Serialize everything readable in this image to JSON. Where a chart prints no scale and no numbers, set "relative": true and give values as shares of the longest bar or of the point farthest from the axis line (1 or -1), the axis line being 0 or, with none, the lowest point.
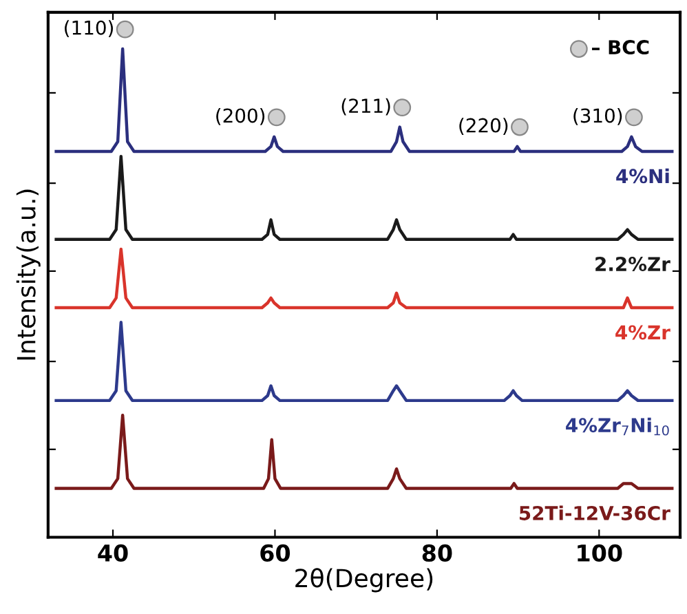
{
  "chart_data": {
    "type": "line",
    "relative": true,
    "xlabel": "2θ(Degree)",
    "ylabel": "Intensity(a.u.)",
    "xlim": [
      32,
      110
    ],
    "xticks": [
      40,
      60,
      80,
      100
    ],
    "tick_labels": "x",
    "grid": false,
    "marker": "none",
    "line_style": "solid",
    "series": [
      {
        "name": "4%Ni",
        "color": "#2b2f7e",
        "x": [
          33,
          39.8,
          40.6,
          41.2,
          41.8,
          42.6,
          58.8,
          59.5,
          59.9,
          60.3,
          61.0,
          74.3,
          75.0,
          75.4,
          75.8,
          76.6,
          88.8,
          89.5,
          89.9,
          90.3,
          91.0,
          102.8,
          103.5,
          104.0,
          104.5,
          105.3,
          109
        ],
        "values": [
          0.79,
          0.79,
          0.81,
          1.0,
          0.81,
          0.79,
          0.79,
          0.8,
          0.82,
          0.8,
          0.79,
          0.79,
          0.81,
          0.84,
          0.81,
          0.79,
          0.79,
          0.79,
          0.8,
          0.79,
          0.79,
          0.79,
          0.8,
          0.82,
          0.8,
          0.79,
          0.79
        ]
      },
      {
        "name": "2.2%Zr",
        "color": "#1a1a1a",
        "x": [
          33,
          39.6,
          40.4,
          41.0,
          41.6,
          42.4,
          58.4,
          59.1,
          59.5,
          59.9,
          60.6,
          73.9,
          74.6,
          75.0,
          75.4,
          76.2,
          88.3,
          89.0,
          89.4,
          89.8,
          90.5,
          102.3,
          103.0,
          103.5,
          104.0,
          104.8,
          109
        ],
        "values": [
          0.61,
          0.61,
          0.63,
          0.78,
          0.63,
          0.61,
          0.61,
          0.62,
          0.65,
          0.62,
          0.61,
          0.61,
          0.63,
          0.65,
          0.63,
          0.61,
          0.61,
          0.61,
          0.62,
          0.61,
          0.61,
          0.61,
          0.62,
          0.63,
          0.62,
          0.61,
          0.61
        ]
      },
      {
        "name": "4%Zr",
        "color": "#d9342b",
        "x": [
          33,
          39.6,
          40.4,
          41.0,
          41.6,
          42.4,
          58.4,
          59.1,
          59.5,
          59.9,
          60.6,
          73.9,
          74.6,
          75.0,
          75.4,
          76.2,
          88.3,
          89.0,
          89.4,
          89.8,
          90.5,
          102.3,
          103.0,
          103.5,
          104.0,
          104.8,
          109
        ],
        "values": [
          0.47,
          0.47,
          0.49,
          0.59,
          0.49,
          0.47,
          0.47,
          0.48,
          0.49,
          0.48,
          0.47,
          0.47,
          0.48,
          0.5,
          0.48,
          0.47,
          0.47,
          0.47,
          0.47,
          0.47,
          0.47,
          0.47,
          0.47,
          0.49,
          0.47,
          0.47,
          0.47
        ]
      },
      {
        "name": "4%Zr$_{7}$Ni$_{10}$",
        "color": "#2d3a8c",
        "x": [
          33,
          39.6,
          40.4,
          41.0,
          41.6,
          42.4,
          58.4,
          59.1,
          59.5,
          59.9,
          60.6,
          73.9,
          74.6,
          75.0,
          75.4,
          76.2,
          88.3,
          89.0,
          89.4,
          89.8,
          90.5,
          102.3,
          103.0,
          103.5,
          104.0,
          104.8,
          109
        ],
        "values": [
          0.28,
          0.28,
          0.3,
          0.44,
          0.3,
          0.28,
          0.28,
          0.29,
          0.31,
          0.29,
          0.28,
          0.28,
          0.3,
          0.31,
          0.3,
          0.28,
          0.28,
          0.29,
          0.3,
          0.29,
          0.28,
          0.28,
          0.29,
          0.3,
          0.29,
          0.28,
          0.28
        ]
      },
      {
        "name": "52Ti-12V-36Cr",
        "color": "#7a1a1a",
        "x": [
          33,
          39.8,
          40.6,
          41.2,
          41.8,
          42.6,
          58.6,
          59.2,
          59.6,
          60.0,
          60.7,
          73.9,
          74.6,
          75.0,
          75.4,
          76.2,
          88.4,
          89.1,
          89.5,
          89.9,
          90.6,
          102.3,
          103.0,
          103.5,
          104.0,
          104.8,
          109
        ],
        "values": [
          0.1,
          0.1,
          0.12,
          0.25,
          0.12,
          0.1,
          0.1,
          0.12,
          0.2,
          0.12,
          0.1,
          0.1,
          0.12,
          0.14,
          0.12,
          0.1,
          0.1,
          0.1,
          0.11,
          0.1,
          0.1,
          0.1,
          0.11,
          0.11,
          0.11,
          0.1,
          0.1
        ]
      }
    ],
    "annotations": [
      {
        "text": "(110)",
        "x": 41.2,
        "y": 1.0
      },
      {
        "text": "(200)",
        "x": 59.9,
        "y": 0.82
      },
      {
        "text": "(211)",
        "x": 75.4,
        "y": 0.84
      },
      {
        "text": "(220)",
        "x": 89.9,
        "y": 0.8
      },
      {
        "text": "(310)",
        "x": 104.0,
        "y": 0.82
      },
      "– BCC"
    ]
  }
}
